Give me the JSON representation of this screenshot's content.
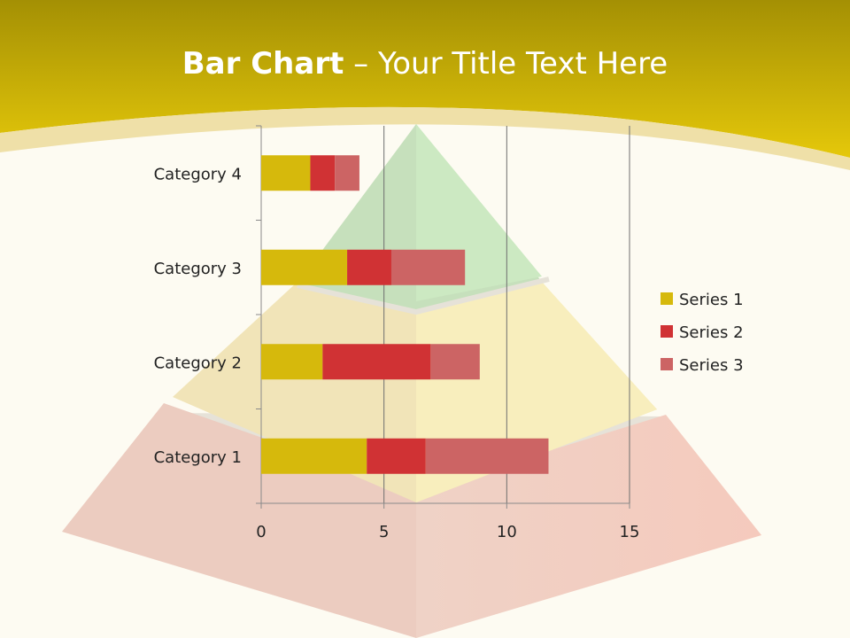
{
  "slide": {
    "title_bold": "Bar Chart",
    "title_rest": " – Your Title Text Here"
  },
  "chart_data": {
    "type": "bar",
    "orientation": "horizontal",
    "stacked": true,
    "categories": [
      "Category 1",
      "Category 2",
      "Category 3",
      "Category 4"
    ],
    "series": [
      {
        "name": "Series 1",
        "values": [
          4.3,
          2.5,
          3.5,
          2.0
        ],
        "color": "#d6b90c"
      },
      {
        "name": "Series 2",
        "values": [
          2.4,
          4.4,
          1.8,
          1.0
        ],
        "color": "#d03234"
      },
      {
        "name": "Series 3",
        "values": [
          5.0,
          2.0,
          3.0,
          1.0
        ],
        "color": "#cc6464"
      }
    ],
    "xlim": [
      0,
      15
    ],
    "x_ticks": [
      0,
      5,
      10,
      15
    ],
    "grid": "vertical",
    "legend": "right"
  },
  "colors": {
    "header_gold": "#e3c70c",
    "pyramid_top": "#c9e8c0",
    "pyramid_middle": "#f7ecb8",
    "pyramid_bottom": "#f3c8bc"
  }
}
